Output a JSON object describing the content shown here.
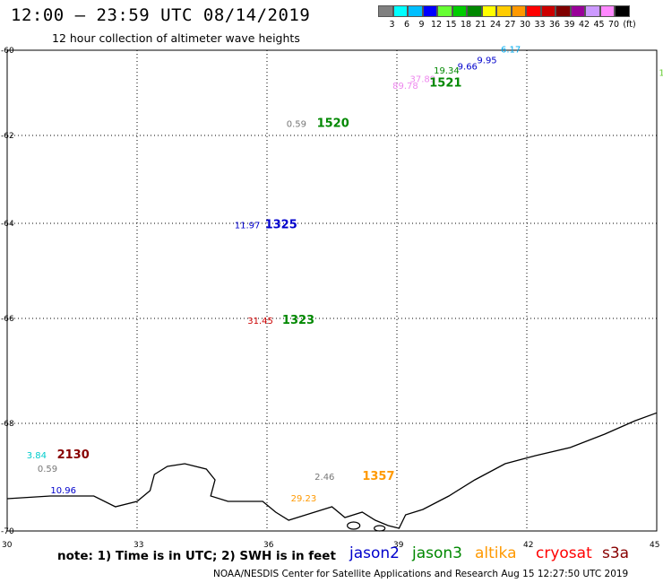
{
  "header": {
    "title": "12:00 – 23:59 UTC 08/14/2019",
    "subtitle": "12 hour collection of altimeter wave heights"
  },
  "colorbar": {
    "colors": [
      "#808080",
      "#00ffff",
      "#00bfff",
      "#0000ff",
      "#66ff33",
      "#00cc00",
      "#008800",
      "#ffff00",
      "#ffcc00",
      "#ff9900",
      "#ff0000",
      "#cc0000",
      "#800000",
      "#990099",
      "#cc99ff",
      "#ff88ff",
      "#000000"
    ],
    "labels": [
      "3",
      "6",
      "9",
      "12",
      "15",
      "18",
      "21",
      "24",
      "27",
      "30",
      "33",
      "36",
      "39",
      "42",
      "45",
      "70",
      "(ft)"
    ]
  },
  "axes": {
    "x_labels": [
      "30",
      "33",
      "36",
      "39",
      "42",
      "45"
    ],
    "y_labels": [
      "-60",
      "-62",
      "-64",
      "-66",
      "-68",
      "-70"
    ]
  },
  "markers": [
    {
      "type": "swh",
      "text": "6.17",
      "color": "#00aaee",
      "lon": 41.4,
      "lat": -60.05
    },
    {
      "type": "swh",
      "text": "9.95",
      "color": "#0000cc",
      "lon": 40.85,
      "lat": -60.3
    },
    {
      "type": "swh",
      "text": "9.66",
      "color": "#0000cc",
      "lon": 40.4,
      "lat": -60.45
    },
    {
      "type": "swh",
      "text": "19.34",
      "color": "#008800",
      "lon": 39.85,
      "lat": -60.55
    },
    {
      "type": "swh",
      "text": "37.89",
      "color": "#ee88ee",
      "lon": 39.3,
      "lat": -60.75
    },
    {
      "type": "swh",
      "text": "89.78",
      "color": "#ee88ee",
      "lon": 38.9,
      "lat": -60.9
    },
    {
      "type": "swh",
      "text": "1:",
      "color": "#66cc33",
      "lon": 45.05,
      "lat": -60.6
    },
    {
      "type": "swh",
      "text": "0.59",
      "color": "#777777",
      "lon": 36.45,
      "lat": -61.8
    },
    {
      "type": "swh",
      "text": "11.97",
      "color": "#0000cc",
      "lon": 35.25,
      "lat": -64.1
    },
    {
      "type": "swh",
      "text": "31.45",
      "color": "#cc0000",
      "lon": 35.55,
      "lat": -66.1
    },
    {
      "type": "swh",
      "text": "3.84",
      "color": "#00cccc",
      "lon": 30.45,
      "lat": -68.65
    },
    {
      "type": "swh",
      "text": "0.59",
      "color": "#777777",
      "lon": 30.7,
      "lat": -68.9
    },
    {
      "type": "swh",
      "text": "10.96",
      "color": "#0000cc",
      "lon": 31.0,
      "lat": -69.3
    },
    {
      "type": "swh",
      "text": "2.46",
      "color": "#777777",
      "lon": 37.1,
      "lat": -69.05
    },
    {
      "type": "swh",
      "text": "29.23",
      "color": "#ff9900",
      "lon": 36.55,
      "lat": -69.45
    },
    {
      "type": "time",
      "text": "1521",
      "color": "#008800",
      "lon": 39.75,
      "lat": -60.85
    },
    {
      "type": "time",
      "text": "1520",
      "color": "#008800",
      "lon": 37.15,
      "lat": -61.8
    },
    {
      "type": "time",
      "text": "1325",
      "color": "#0000cc",
      "lon": 35.95,
      "lat": -64.1
    },
    {
      "type": "time",
      "text": "1323",
      "color": "#008800",
      "lon": 36.35,
      "lat": -66.1
    },
    {
      "type": "time",
      "text": "2130",
      "color": "#880000",
      "lon": 31.15,
      "lat": -68.65
    },
    {
      "type": "time",
      "text": "1357",
      "color": "#ff9900",
      "lon": 38.2,
      "lat": -69.05
    }
  ],
  "coastline": [
    [
      30,
      -69.4
    ],
    [
      31,
      -69.35
    ],
    [
      32,
      -69.35
    ],
    [
      32.5,
      -69.55
    ],
    [
      33,
      -69.45
    ],
    [
      33.3,
      -69.25
    ],
    [
      33.4,
      -68.95
    ],
    [
      33.7,
      -68.8
    ],
    [
      34.1,
      -68.75
    ],
    [
      34.6,
      -68.85
    ],
    [
      34.8,
      -69.05
    ],
    [
      34.7,
      -69.35
    ],
    [
      35.1,
      -69.45
    ],
    [
      35.9,
      -69.45
    ],
    [
      36.2,
      -69.65
    ],
    [
      36.5,
      -69.8
    ],
    [
      36.9,
      -69.7
    ],
    [
      37.5,
      -69.55
    ],
    [
      37.8,
      -69.75
    ],
    [
      38.2,
      -69.65
    ],
    [
      38.5,
      -69.8
    ],
    [
      38.8,
      -69.9
    ],
    [
      39.05,
      -69.95
    ],
    [
      39.2,
      -69.7
    ],
    [
      39.6,
      -69.6
    ],
    [
      40.2,
      -69.35
    ],
    [
      40.8,
      -69.05
    ],
    [
      41.5,
      -68.75
    ],
    [
      42.2,
      -68.6
    ],
    [
      43,
      -68.45
    ],
    [
      43.8,
      -68.2
    ],
    [
      44.5,
      -67.95
    ],
    [
      45,
      -67.8
    ]
  ],
  "footer": {
    "note": "note: 1) Time is in UTC; 2) SWH is in feet",
    "satellites": [
      {
        "name": "jason2",
        "color": "#0000cc"
      },
      {
        "name": "jason3",
        "color": "#008800"
      },
      {
        "name": "altika",
        "color": "#ff9900"
      },
      {
        "name": "cryosat",
        "color": "#ff0000"
      },
      {
        "name": "s3a",
        "color": "#880000"
      }
    ],
    "credit": "NOAA/NESDIS Center for Satellite Applications and Research    Aug 15 12:27:50 UTC 2019"
  }
}
